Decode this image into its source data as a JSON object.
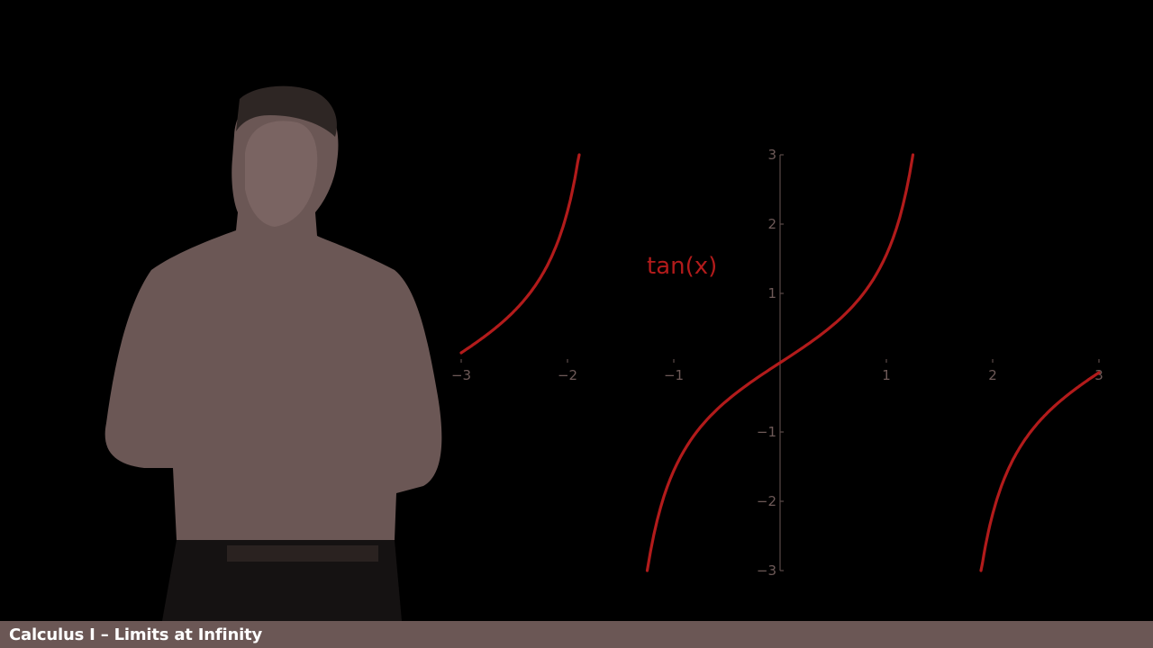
{
  "caption": {
    "title": "Calculus I – Limits at Infinity"
  },
  "colors": {
    "curve": "#b21b1b",
    "axis": "#5a4a48",
    "tick_label": "#6e5a58",
    "presenter_shirt": "#6b5755",
    "caption_bar": "#6b5755"
  },
  "presenter": {
    "icon": "presenter-silhouette"
  },
  "chart_data": {
    "type": "line",
    "title": "",
    "function_label": "tan(x)",
    "xlabel": "",
    "ylabel": "",
    "xlim": [
      -3,
      3
    ],
    "ylim": [
      -3,
      3
    ],
    "x_ticks": [
      -3,
      -2,
      -1,
      1,
      2,
      3
    ],
    "x_tick_labels": [
      "−3",
      "−2",
      "−1",
      "1",
      "2",
      "3"
    ],
    "y_ticks": [
      -3,
      -2,
      -1,
      1,
      2,
      3
    ],
    "y_tick_labels": [
      "−3",
      "−2",
      "−1",
      "1",
      "2",
      "3"
    ],
    "grid": false,
    "series": [
      {
        "values": [
          [
            -3.0,
            0.14
          ],
          [
            -2.8,
            0.36
          ],
          [
            -2.6,
            0.6
          ],
          [
            -2.4,
            0.92
          ],
          [
            -2.2,
            1.37
          ],
          [
            -2.0,
            2.19
          ],
          [
            -1.89,
            3.0
          ]
        ]
      },
      {
        "values": [
          [
            -1.25,
            -3.0
          ],
          [
            -1.2,
            -2.57
          ],
          [
            -1.0,
            -1.56
          ],
          [
            -0.8,
            -1.03
          ],
          [
            -0.6,
            -0.68
          ],
          [
            -0.4,
            -0.42
          ],
          [
            -0.2,
            -0.2
          ],
          [
            0.0,
            0.0
          ],
          [
            0.2,
            0.2
          ],
          [
            0.4,
            0.42
          ],
          [
            0.6,
            0.68
          ],
          [
            0.8,
            1.03
          ],
          [
            1.0,
            1.56
          ],
          [
            1.2,
            2.57
          ],
          [
            1.25,
            3.0
          ]
        ]
      },
      {
        "values": [
          [
            1.89,
            -3.0
          ],
          [
            2.0,
            -2.19
          ],
          [
            2.2,
            -1.37
          ],
          [
            2.4,
            -0.92
          ],
          [
            2.6,
            -0.6
          ],
          [
            2.8,
            -0.36
          ],
          [
            3.0,
            -0.14
          ]
        ]
      }
    ]
  }
}
